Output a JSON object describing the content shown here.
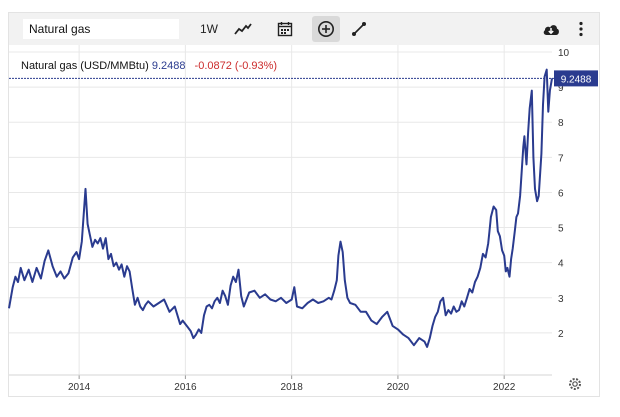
{
  "toolbar": {
    "symbol_value": "Natural gas",
    "period_label": "1W",
    "icons": [
      "line-chart-icon",
      "calendar-icon",
      "add-comparison-icon",
      "draw-icon",
      "cloud-download-icon",
      "more-menu-icon"
    ]
  },
  "legend": {
    "name": "Natural gas (USD/MMBtu)",
    "last": "9.2488",
    "change": "-0.0872 (-0.93%)"
  },
  "price_tag": "9.2488",
  "colors": {
    "line": "#2a3b8f",
    "change_negative": "#cc2d2d",
    "tag_bg": "#2a3b8f"
  },
  "chart_data": {
    "type": "line",
    "title": "Natural gas (USD/MMBtu)",
    "xlabel": "",
    "ylabel": "",
    "x_ticks": [
      "2014",
      "2016",
      "2018",
      "2020",
      "2022"
    ],
    "y_ticks": [
      "2",
      "3",
      "4",
      "5",
      "6",
      "7",
      "8",
      "9",
      "10"
    ],
    "ylim": [
      0.8,
      10.2
    ],
    "xlim": [
      2012.68,
      2022.9
    ],
    "grid": true,
    "last_value": 9.2488,
    "series": [
      {
        "name": "Natural gas",
        "x": [
          2012.68,
          2012.75,
          2012.8,
          2012.85,
          2012.9,
          2012.97,
          2013.05,
          2013.12,
          2013.2,
          2013.28,
          2013.35,
          2013.42,
          2013.5,
          2013.58,
          2013.65,
          2013.72,
          2013.8,
          2013.88,
          2013.95,
          2014.0,
          2014.05,
          2014.08,
          2014.12,
          2014.16,
          2014.2,
          2014.25,
          2014.3,
          2014.35,
          2014.4,
          2014.45,
          2014.5,
          2014.55,
          2014.6,
          2014.65,
          2014.7,
          2014.75,
          2014.8,
          2014.85,
          2014.9,
          2014.95,
          2015.0,
          2015.05,
          2015.1,
          2015.15,
          2015.2,
          2015.25,
          2015.3,
          2015.4,
          2015.5,
          2015.6,
          2015.7,
          2015.8,
          2015.9,
          2015.95,
          2016.0,
          2016.05,
          2016.1,
          2016.15,
          2016.2,
          2016.25,
          2016.3,
          2016.35,
          2016.4,
          2016.45,
          2016.5,
          2016.55,
          2016.6,
          2016.65,
          2016.7,
          2016.75,
          2016.8,
          2016.85,
          2016.9,
          2016.95,
          2017.0,
          2017.05,
          2017.1,
          2017.2,
          2017.3,
          2017.4,
          2017.5,
          2017.6,
          2017.7,
          2017.8,
          2017.9,
          2018.0,
          2018.05,
          2018.1,
          2018.2,
          2018.3,
          2018.4,
          2018.5,
          2018.6,
          2018.7,
          2018.75,
          2018.8,
          2018.85,
          2018.88,
          2018.92,
          2018.96,
          2019.0,
          2019.05,
          2019.1,
          2019.2,
          2019.3,
          2019.4,
          2019.5,
          2019.6,
          2019.7,
          2019.8,
          2019.9,
          2020.0,
          2020.1,
          2020.2,
          2020.3,
          2020.4,
          2020.5,
          2020.55,
          2020.6,
          2020.65,
          2020.7,
          2020.75,
          2020.8,
          2020.85,
          2020.9,
          2020.95,
          2021.0,
          2021.05,
          2021.1,
          2021.15,
          2021.2,
          2021.25,
          2021.3,
          2021.35,
          2021.4,
          2021.45,
          2021.5,
          2021.55,
          2021.6,
          2021.65,
          2021.7,
          2021.72,
          2021.75,
          2021.8,
          2021.85,
          2021.88,
          2021.92,
          2021.96,
          2022.0,
          2022.03,
          2022.06,
          2022.1,
          2022.13,
          2022.16,
          2022.2,
          2022.23,
          2022.26,
          2022.3,
          2022.33,
          2022.36,
          2022.38,
          2022.42,
          2022.45,
          2022.48,
          2022.52,
          2022.55,
          2022.58,
          2022.62,
          2022.65,
          2022.7,
          2022.73,
          2022.76,
          2022.8,
          2022.83,
          2022.86,
          2022.9
        ],
        "y": [
          2.7,
          3.3,
          3.6,
          3.45,
          3.85,
          3.5,
          3.8,
          3.45,
          3.85,
          3.55,
          4.05,
          4.35,
          3.9,
          3.6,
          3.75,
          3.55,
          3.7,
          4.15,
          4.3,
          4.1,
          4.6,
          5.25,
          6.1,
          5.1,
          4.8,
          4.45,
          4.65,
          4.55,
          4.7,
          4.4,
          4.7,
          4.1,
          4.25,
          3.9,
          4.0,
          3.8,
          3.95,
          3.6,
          3.9,
          3.75,
          3.25,
          2.8,
          3.0,
          2.75,
          2.65,
          2.8,
          2.9,
          2.75,
          2.85,
          2.95,
          2.6,
          2.75,
          2.25,
          2.35,
          2.25,
          2.15,
          2.05,
          1.85,
          1.95,
          2.1,
          2.0,
          2.5,
          2.75,
          2.8,
          2.7,
          2.9,
          3.0,
          2.85,
          3.2,
          3.05,
          2.8,
          3.35,
          3.6,
          3.45,
          3.8,
          3.05,
          2.75,
          3.15,
          3.2,
          3.0,
          3.1,
          2.95,
          2.9,
          3.0,
          2.85,
          2.95,
          3.3,
          2.75,
          2.7,
          2.85,
          2.95,
          2.85,
          2.9,
          3.0,
          2.95,
          3.2,
          3.5,
          4.2,
          4.6,
          4.3,
          3.5,
          3.0,
          2.85,
          2.8,
          2.6,
          2.6,
          2.35,
          2.25,
          2.45,
          2.6,
          2.2,
          2.1,
          1.95,
          1.85,
          1.65,
          1.85,
          1.75,
          1.6,
          1.85,
          2.2,
          2.45,
          2.6,
          2.9,
          3.0,
          2.5,
          2.65,
          2.55,
          2.75,
          2.6,
          2.65,
          2.9,
          2.75,
          3.0,
          3.25,
          3.15,
          3.45,
          3.6,
          3.85,
          4.25,
          4.15,
          4.55,
          4.85,
          5.3,
          5.6,
          5.5,
          4.9,
          4.75,
          4.35,
          4.2,
          3.75,
          3.85,
          3.6,
          4.1,
          4.4,
          4.9,
          5.3,
          5.4,
          5.9,
          6.6,
          7.3,
          7.6,
          6.8,
          7.7,
          8.4,
          8.9,
          7.0,
          6.1,
          5.75,
          5.9,
          7.1,
          8.5,
          9.3,
          9.5,
          8.3,
          8.9,
          9.25
        ]
      }
    ]
  }
}
